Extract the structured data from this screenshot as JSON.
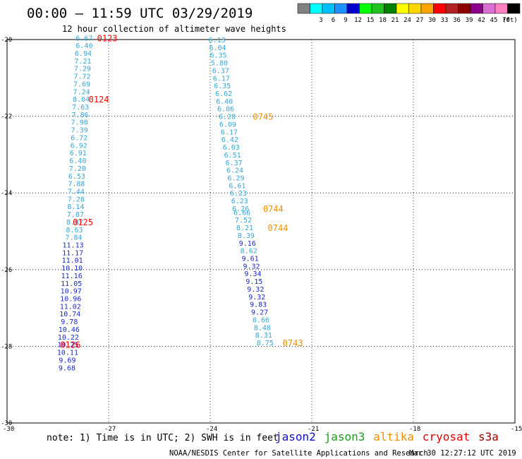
{
  "header": {
    "title": "00:00 — 11:59 UTC 03/29/2019",
    "subtitle": "12 hour collection of altimeter wave heights"
  },
  "legend": {
    "unit": "(ft)",
    "items": [
      {
        "color": "#808080",
        "label": ""
      },
      {
        "color": "#00ffff",
        "label": "3"
      },
      {
        "color": "#00bfff",
        "label": "6"
      },
      {
        "color": "#1e90ff",
        "label": "9"
      },
      {
        "color": "#0000cd",
        "label": "12"
      },
      {
        "color": "#00ff00",
        "label": "15"
      },
      {
        "color": "#22c222",
        "label": "18"
      },
      {
        "color": "#008000",
        "label": "21"
      },
      {
        "color": "#ffff00",
        "label": "24"
      },
      {
        "color": "#ffd700",
        "label": "27"
      },
      {
        "color": "#ffa500",
        "label": "30"
      },
      {
        "color": "#ff0000",
        "label": "33"
      },
      {
        "color": "#b22222",
        "label": "36"
      },
      {
        "color": "#8b0000",
        "label": "39"
      },
      {
        "color": "#8b008b",
        "label": "42"
      },
      {
        "color": "#da70d6",
        "label": "45"
      },
      {
        "color": "#ff80c0",
        "label": "70"
      },
      {
        "color": "#000000",
        "label": ""
      }
    ]
  },
  "footer": {
    "note": "note: 1) Time is in UTC; 2) SWH is in feet",
    "satellites": [
      {
        "name": "jason2",
        "color": "#1010c8"
      },
      {
        "name": "jason3",
        "color": "#1a9a1a"
      },
      {
        "name": "altika",
        "color": "#f09000"
      },
      {
        "name": "cryosat",
        "color": "#e00000"
      },
      {
        "name": "s3a",
        "color": "#a00000"
      }
    ],
    "credit": "NOAA/NESDIS Center for Satellite Applications and Research",
    "timestamp": "Mar 30 12:27:12 UTC 2019"
  },
  "chart_data": {
    "type": "scatter",
    "xlim": [
      -30,
      -15
    ],
    "ylim": [
      -30,
      -20
    ],
    "x_ticks": [
      -30,
      -27,
      -24,
      -21,
      -18,
      -15
    ],
    "y_ticks": [
      -20,
      -22,
      -24,
      -26,
      -28,
      -30
    ],
    "x_tick_labels": [
      "-30",
      "-27",
      "-24",
      "-21",
      "-18",
      "-15"
    ],
    "y_tick_labels": [
      "-20",
      "-22",
      "-24",
      "-26",
      "-28",
      "-30"
    ],
    "grid": true,
    "colors": {
      "c6": "#33a8d8",
      "c9": "#1c28c8",
      "red": "#ff0000",
      "orange": "#f09000"
    },
    "series": [
      {
        "points": [
          {
            "x": -27.72,
            "y": -19.95,
            "v": "6.67",
            "c": "c6"
          },
          {
            "x": -27.72,
            "y": -20.15,
            "v": "6.40",
            "c": "c6"
          },
          {
            "x": -27.75,
            "y": -20.35,
            "v": "6.94",
            "c": "c6"
          },
          {
            "x": -27.76,
            "y": -20.55,
            "v": "7.21",
            "c": "c6"
          },
          {
            "x": -27.77,
            "y": -20.75,
            "v": "7.29",
            "c": "c6"
          },
          {
            "x": -27.78,
            "y": -20.95,
            "v": "7.72",
            "c": "c6"
          },
          {
            "x": -27.79,
            "y": -21.15,
            "v": "7.69",
            "c": "c6"
          },
          {
            "x": -27.8,
            "y": -21.35,
            "v": "7.24",
            "c": "c6"
          },
          {
            "x": -27.81,
            "y": -21.55,
            "v": "8.04",
            "c": "c6"
          },
          {
            "x": -27.83,
            "y": -21.75,
            "v": "7.63",
            "c": "c6"
          },
          {
            "x": -27.84,
            "y": -21.95,
            "v": "7.86",
            "c": "c6"
          },
          {
            "x": -27.86,
            "y": -22.15,
            "v": "7.98",
            "c": "c6"
          },
          {
            "x": -27.86,
            "y": -22.35,
            "v": "7.39",
            "c": "c6"
          },
          {
            "x": -27.87,
            "y": -22.55,
            "v": "6.72",
            "c": "c6"
          },
          {
            "x": -27.88,
            "y": -22.75,
            "v": "6.92",
            "c": "c6"
          },
          {
            "x": -27.9,
            "y": -22.95,
            "v": "6.91",
            "c": "c6"
          },
          {
            "x": -27.91,
            "y": -23.15,
            "v": "6.40",
            "c": "c6"
          },
          {
            "x": -27.92,
            "y": -23.35,
            "v": "7.20",
            "c": "c6"
          },
          {
            "x": -27.94,
            "y": -23.55,
            "v": "6.53",
            "c": "c6"
          },
          {
            "x": -27.95,
            "y": -23.75,
            "v": "7.88",
            "c": "c6"
          },
          {
            "x": -27.96,
            "y": -23.95,
            "v": "7.44",
            "c": "c6"
          },
          {
            "x": -27.96,
            "y": -24.15,
            "v": "7.28",
            "c": "c6"
          },
          {
            "x": -27.97,
            "y": -24.35,
            "v": "8.14",
            "c": "c6"
          },
          {
            "x": -27.98,
            "y": -24.55,
            "v": "7.87",
            "c": "c6"
          },
          {
            "x": -28.0,
            "y": -24.75,
            "v": "8.87",
            "c": "c6"
          },
          {
            "x": -28.01,
            "y": -24.95,
            "v": "8.63",
            "c": "c6"
          },
          {
            "x": -28.03,
            "y": -25.15,
            "v": "7.84",
            "c": "c6"
          },
          {
            "x": -28.05,
            "y": -25.35,
            "v": "11.13",
            "c": "c9"
          },
          {
            "x": -28.06,
            "y": -25.55,
            "v": "11.17",
            "c": "c9"
          },
          {
            "x": -28.07,
            "y": -25.75,
            "v": "11.01",
            "c": "c9"
          },
          {
            "x": -28.08,
            "y": -25.95,
            "v": "10.10",
            "c": "c9"
          },
          {
            "x": -28.09,
            "y": -26.15,
            "v": "11.16",
            "c": "c9"
          },
          {
            "x": -28.1,
            "y": -26.35,
            "v": "11.05",
            "c": "c9"
          },
          {
            "x": -28.11,
            "y": -26.55,
            "v": "10.97",
            "c": "c9"
          },
          {
            "x": -28.12,
            "y": -26.75,
            "v": "10.96",
            "c": "c9"
          },
          {
            "x": -28.13,
            "y": -26.95,
            "v": "11.02",
            "c": "c9"
          },
          {
            "x": -28.14,
            "y": -27.15,
            "v": "10.74",
            "c": "c9"
          },
          {
            "x": -28.16,
            "y": -27.35,
            "v": "9.78",
            "c": "c9"
          },
          {
            "x": -28.17,
            "y": -27.55,
            "v": "10.46",
            "c": "c9"
          },
          {
            "x": -28.19,
            "y": -27.75,
            "v": "10.22",
            "c": "c9"
          },
          {
            "x": -28.2,
            "y": -27.95,
            "v": "10.25",
            "c": "c9"
          },
          {
            "x": -28.21,
            "y": -28.15,
            "v": "10.11",
            "c": "c9"
          },
          {
            "x": -28.22,
            "y": -28.35,
            "v": "9.69",
            "c": "c9"
          },
          {
            "x": -28.23,
            "y": -28.55,
            "v": "9.68",
            "c": "c9"
          }
        ]
      },
      {
        "points": [
          {
            "x": -23.8,
            "y": -20.0,
            "v": "6.13",
            "c": "c6"
          },
          {
            "x": -23.78,
            "y": -20.2,
            "v": "6.04",
            "c": "c6"
          },
          {
            "x": -23.76,
            "y": -20.4,
            "v": "6.35",
            "c": "c6"
          },
          {
            "x": -23.73,
            "y": -20.6,
            "v": "5.80",
            "c": "c6"
          },
          {
            "x": -23.69,
            "y": -20.8,
            "v": "6.37",
            "c": "c6"
          },
          {
            "x": -23.67,
            "y": -21.0,
            "v": "6.17",
            "c": "c6"
          },
          {
            "x": -23.64,
            "y": -21.2,
            "v": "6.35",
            "c": "c6"
          },
          {
            "x": -23.6,
            "y": -21.4,
            "v": "6.62",
            "c": "c6"
          },
          {
            "x": -23.58,
            "y": -21.6,
            "v": "6.40",
            "c": "c6"
          },
          {
            "x": -23.54,
            "y": -21.8,
            "v": "6.06",
            "c": "c6"
          },
          {
            "x": -23.5,
            "y": -22.0,
            "v": "6.28",
            "c": "c6"
          },
          {
            "x": -23.48,
            "y": -22.2,
            "v": "6.09",
            "c": "c6"
          },
          {
            "x": -23.44,
            "y": -22.4,
            "v": "6.17",
            "c": "c6"
          },
          {
            "x": -23.42,
            "y": -22.6,
            "v": "6.42",
            "c": "c6"
          },
          {
            "x": -23.38,
            "y": -22.8,
            "v": "6.03",
            "c": "c6"
          },
          {
            "x": -23.34,
            "y": -23.0,
            "v": "6.51",
            "c": "c6"
          },
          {
            "x": -23.3,
            "y": -23.2,
            "v": "6.37",
            "c": "c6"
          },
          {
            "x": -23.27,
            "y": -23.4,
            "v": "6.24",
            "c": "c6"
          },
          {
            "x": -23.24,
            "y": -23.6,
            "v": "6.29",
            "c": "c6"
          },
          {
            "x": -23.2,
            "y": -23.8,
            "v": "6.61",
            "c": "c6"
          },
          {
            "x": -23.17,
            "y": -24.0,
            "v": "6.23",
            "c": "c6"
          },
          {
            "x": -23.13,
            "y": -24.2,
            "v": "6.23",
            "c": "c6"
          },
          {
            "x": -23.1,
            "y": -24.4,
            "v": "6.26",
            "c": "c6"
          },
          {
            "x": -23.06,
            "y": -24.5,
            "v": "6.66",
            "c": "c6"
          },
          {
            "x": -23.02,
            "y": -24.7,
            "v": "7.52",
            "c": "c6"
          },
          {
            "x": -22.98,
            "y": -24.9,
            "v": "8.21",
            "c": "c6"
          },
          {
            "x": -22.94,
            "y": -25.1,
            "v": "8.39",
            "c": "c6"
          },
          {
            "x": -22.9,
            "y": -25.3,
            "v": "9.16",
            "c": "c9"
          },
          {
            "x": -22.86,
            "y": -25.5,
            "v": "8.62",
            "c": "c6"
          },
          {
            "x": -22.82,
            "y": -25.7,
            "v": "9.61",
            "c": "c9"
          },
          {
            "x": -22.78,
            "y": -25.9,
            "v": "9.32",
            "c": "c9"
          },
          {
            "x": -22.74,
            "y": -26.1,
            "v": "9.34",
            "c": "c9"
          },
          {
            "x": -22.7,
            "y": -26.3,
            "v": "9.15",
            "c": "c9"
          },
          {
            "x": -22.66,
            "y": -26.5,
            "v": "9.32",
            "c": "c9"
          },
          {
            "x": -22.62,
            "y": -26.7,
            "v": "9.32",
            "c": "c9"
          },
          {
            "x": -22.58,
            "y": -26.9,
            "v": "9.83",
            "c": "c9"
          },
          {
            "x": -22.54,
            "y": -27.1,
            "v": "9.27",
            "c": "c9"
          },
          {
            "x": -22.5,
            "y": -27.3,
            "v": "8.66",
            "c": "c6"
          },
          {
            "x": -22.46,
            "y": -27.5,
            "v": "8.48",
            "c": "c6"
          },
          {
            "x": -22.42,
            "y": -27.7,
            "v": "8.31",
            "c": "c6"
          },
          {
            "x": -22.38,
            "y": -27.9,
            "v": "8.75",
            "c": "c6"
          }
        ]
      }
    ],
    "pass_labels": [
      {
        "x": -27.04,
        "y": -19.95,
        "text": "0123",
        "c": "red"
      },
      {
        "x": -27.29,
        "y": -21.55,
        "text": "0124",
        "c": "red"
      },
      {
        "x": -27.76,
        "y": -24.75,
        "text": "0125",
        "c": "red"
      },
      {
        "x": -28.13,
        "y": -27.95,
        "text": "0126",
        "c": "red"
      },
      {
        "x": -22.44,
        "y": -22.0,
        "text": "0745",
        "c": "orange"
      },
      {
        "x": -22.14,
        "y": -24.4,
        "text": "0744",
        "c": "orange"
      },
      {
        "x": -22.0,
        "y": -24.9,
        "text": "0744",
        "c": "orange"
      },
      {
        "x": -21.56,
        "y": -27.9,
        "text": "0743",
        "c": "orange"
      }
    ]
  }
}
